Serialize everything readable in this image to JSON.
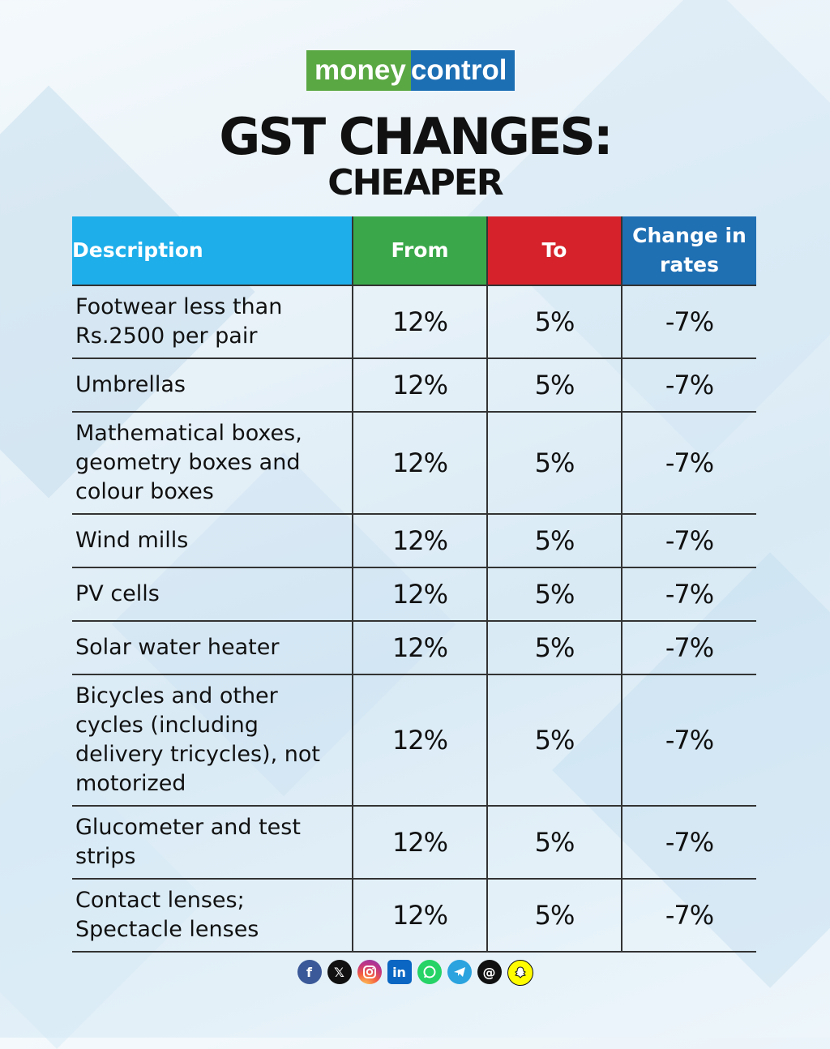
{
  "brand": {
    "part1": "money",
    "part2": "control"
  },
  "title": "GST CHANGES:",
  "subtitle": "CHEAPER",
  "colors": {
    "description": "#1eaeea",
    "from": "#3aa84a",
    "to": "#d6222a",
    "change": "#1f6fb3"
  },
  "table": {
    "headers": {
      "description": "Description",
      "from": "From",
      "to": "To",
      "change": "Change in rates"
    },
    "rows": [
      {
        "description": "Footwear less than Rs.2500 per pair",
        "from": "12%",
        "to": "5%",
        "change": "-7%"
      },
      {
        "description": "Umbrellas",
        "from": "12%",
        "to": "5%",
        "change": "-7%"
      },
      {
        "description": "Mathematical boxes, geometry boxes and colour boxes",
        "from": "12%",
        "to": "5%",
        "change": "-7%"
      },
      {
        "description": "Wind mills",
        "from": "12%",
        "to": "5%",
        "change": "-7%"
      },
      {
        "description": "PV cells",
        "from": "12%",
        "to": "5%",
        "change": "-7%"
      },
      {
        "description": "Solar water heater",
        "from": "12%",
        "to": "5%",
        "change": "-7%"
      },
      {
        "description": "Bicycles and other cycles (including delivery tricycles), not motorized",
        "from": "12%",
        "to": "5%",
        "change": "-7%"
      },
      {
        "description": "Glucometer and test strips",
        "from": "12%",
        "to": "5%",
        "change": "-7%"
      },
      {
        "description": "Contact lenses; Spectacle lenses",
        "from": "12%",
        "to": "5%",
        "change": "-7%"
      }
    ]
  },
  "social_icons": [
    "facebook-icon",
    "x-icon",
    "instagram-icon",
    "linkedin-icon",
    "whatsapp-icon",
    "telegram-icon",
    "threads-icon",
    "snapchat-icon"
  ]
}
